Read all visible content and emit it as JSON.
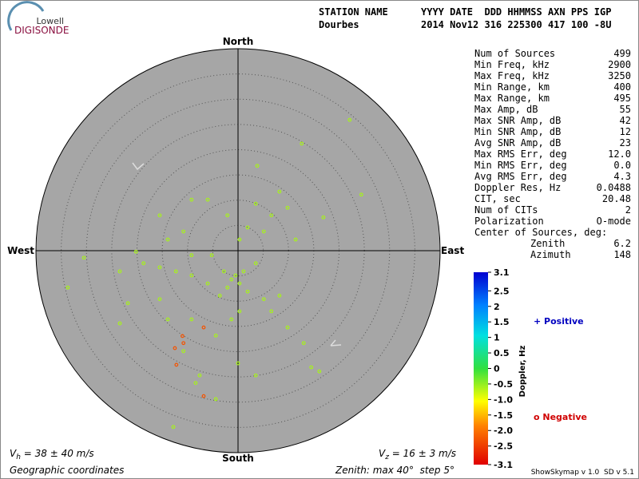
{
  "logo": {
    "top": "Lowell",
    "bottom": "DIGISONDE"
  },
  "header": {
    "row1": [
      "STATION NAME",
      "YYYY DATE  DDD HHMMSS AXN PPS IGP"
    ],
    "row2": [
      "Dourbes",
      "2014 Nov12 316 225300 417 100 -8U"
    ]
  },
  "stats": [
    [
      "Num of Sources",
      "499"
    ],
    [
      "Min Freq, kHz",
      "2900"
    ],
    [
      "Max Freq, kHz",
      "3250"
    ],
    [
      "Min Range, km",
      "400"
    ],
    [
      "Max Range, km",
      "495"
    ],
    [
      "Max Amp, dB",
      "55"
    ],
    [
      "Max SNR Amp, dB",
      "42"
    ],
    [
      "Min SNR Amp, dB",
      "12"
    ],
    [
      "Avg SNR Amp, dB",
      "23"
    ],
    [
      "Max RMS Err, deg",
      "12.0"
    ],
    [
      "Min RMS Err, deg",
      "0.0"
    ],
    [
      "Avg RMS Err, deg",
      "4.3"
    ],
    [
      "Doppler Res, Hz",
      "0.0488"
    ],
    [
      "CIT, sec",
      "20.48"
    ],
    [
      "Num of CITs",
      "2"
    ],
    [
      "Polarization",
      "O-mode"
    ],
    [
      "Center of Sources, deg:",
      ""
    ]
  ],
  "center": [
    [
      "Zenith",
      "6.2"
    ],
    [
      "Azimuth",
      "148"
    ]
  ],
  "chart_data": {
    "type": "scatter",
    "directions": {
      "north": "North",
      "south": "South",
      "east": "East",
      "west": "West"
    },
    "x": [
      22.1,
      12.6,
      3.8,
      24.4,
      16.9,
      8.2,
      9.8,
      6.6,
      3.5,
      5.1,
      11.4,
      -2.1,
      -6.0,
      -9.2,
      -15.5,
      -13.9,
      -30.5,
      -33.7,
      -23.4,
      -18.7,
      -15.5,
      -12.3,
      -9.2,
      -6.0,
      -2.8,
      -1.3,
      -0.5,
      0.3,
      1.1,
      -2.1,
      -3.6,
      1.9,
      3.5,
      5.1,
      8.2,
      6.6,
      9.8,
      13.0,
      16.1,
      14.5,
      0,
      3.5,
      -4.4,
      -9.2,
      -13.9,
      -23.4,
      -21.8,
      -10.8,
      -7.6,
      -4.4,
      -12.8,
      -8.4,
      -15.5,
      -5.2,
      -9.2,
      -20.2,
      -10.8,
      0.3,
      1.9,
      0.3,
      -1.3,
      -11.0,
      -12.5,
      -12.2,
      -6.8,
      -6.8,
      -10.8
    ],
    "y": [
      25.9,
      21.2,
      16.8,
      11.1,
      6.6,
      11.7,
      8.5,
      7.0,
      9.3,
      3.8,
      2.2,
      7.0,
      10.1,
      10.1,
      7.0,
      2.2,
      -1.4,
      -7.3,
      -4.1,
      -2.5,
      -3.3,
      -4.1,
      -4.9,
      -6.5,
      -4.1,
      -5.7,
      -4.9,
      -6.5,
      -4.1,
      -7.3,
      -8.9,
      -8.1,
      -2.5,
      -9.6,
      -8.9,
      -12.0,
      -15.2,
      -18.3,
      -23.9,
      -23.1,
      -22.3,
      -24.7,
      -16.8,
      -13.6,
      -13.6,
      -14.4,
      -10.4,
      -19.9,
      -24.7,
      -29.4,
      -34.9,
      -26.2,
      -9.6,
      -0.9,
      -0.9,
      -0.2,
      3.8,
      2.2,
      4.6,
      -12.0,
      -13.6,
      -16.9,
      -19.3,
      -22.6,
      -15.2,
      -28.8,
      -18.3
    ],
    "doppler": [
      -0.6,
      -0.6,
      -0.6,
      -0.6,
      -0.6,
      -0.6,
      -0.6,
      -0.6,
      -0.6,
      -0.6,
      -0.6,
      -0.6,
      -0.6,
      -0.6,
      -0.6,
      -0.6,
      -0.6,
      -0.6,
      -0.6,
      -0.6,
      -0.6,
      -0.6,
      -0.6,
      -0.6,
      -0.6,
      -0.6,
      -0.6,
      -0.6,
      -0.6,
      -0.6,
      -0.6,
      -0.6,
      -0.6,
      -0.6,
      -0.6,
      -0.6,
      -0.6,
      -0.6,
      -0.6,
      -0.6,
      -0.6,
      -0.6,
      -0.6,
      -0.6,
      -0.6,
      -0.6,
      -0.6,
      -0.6,
      -0.6,
      -0.6,
      -0.6,
      -0.6,
      -0.6,
      -0.6,
      -0.6,
      -0.6,
      -0.6,
      -0.6,
      -0.6,
      -0.6,
      -0.6,
      -2.3,
      -2.3,
      -2.3,
      -2.3,
      -2.3,
      -2.3
    ],
    "xlim": [
      -40,
      40
    ],
    "ylim": [
      -40,
      40
    ],
    "ring_step": 5,
    "colorbar": {
      "label": "Doppler, Hz",
      "lim": [
        -3.1,
        3.1
      ],
      "ticks": [
        3.1,
        2.5,
        2,
        1.5,
        1,
        0.5,
        0,
        -0.5,
        {
          "value": -1,
          "label": "-1.0"
        },
        -1.5,
        {
          "value": -2,
          "label": "-2.0"
        },
        -2.5,
        -3.1
      ]
    },
    "positive": "+ Positive",
    "negative": "o Negative",
    "vh": {
      "symbol": "V",
      "sub": "h",
      "text": " = 38 ± 40 m/s"
    },
    "vz": {
      "symbol": "V",
      "sub": "z",
      "text": " = 16 ± 3 m/s"
    },
    "coords": "Geographic coordinates",
    "zenith": "Zenith: max 40°  step 5°",
    "version": "ShowSkymap v 1.0  SD v 5.1"
  }
}
